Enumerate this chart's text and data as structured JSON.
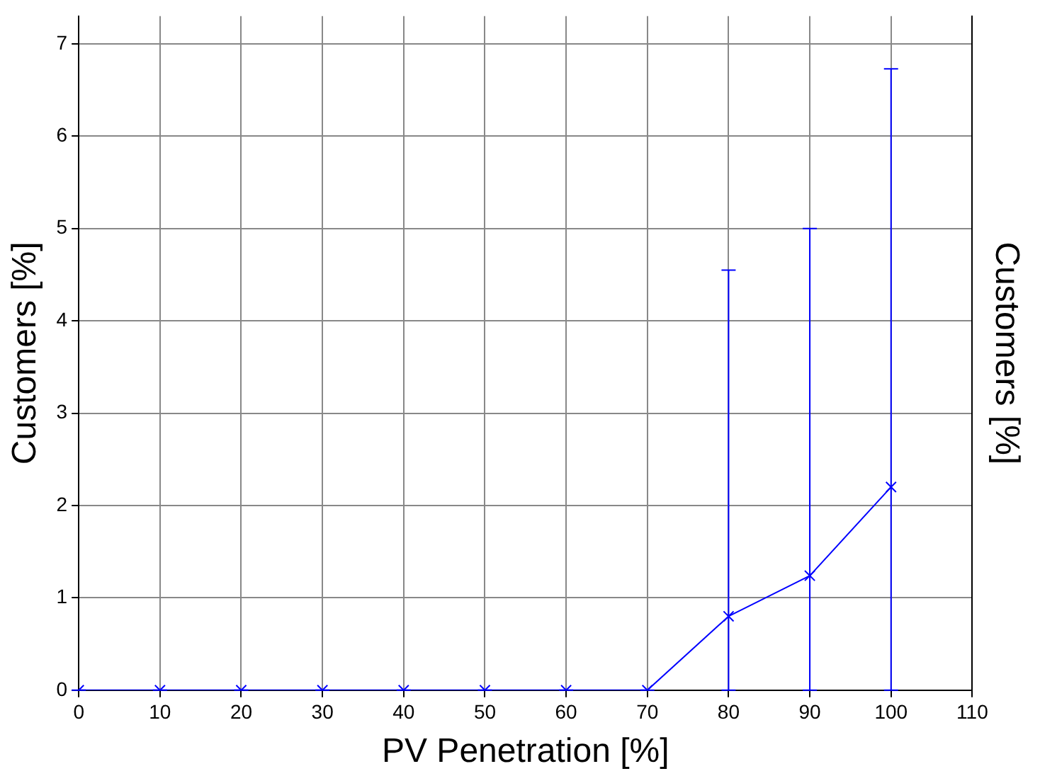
{
  "chart_data": {
    "type": "line",
    "xlabel": "PV Penetration [%]",
    "ylabel": "Customers [%]",
    "y2label": "Customers [%]",
    "x": [
      0,
      10,
      20,
      30,
      40,
      50,
      60,
      70,
      80,
      90,
      100
    ],
    "series": [
      {
        "color": "#0000ff",
        "values": [
          0,
          0,
          0,
          0,
          0,
          0,
          0,
          0,
          0.8,
          1.24,
          2.2
        ],
        "errors": [
          [
            0,
            0
          ],
          [
            0,
            0
          ],
          [
            0,
            0
          ],
          [
            0,
            0
          ],
          [
            0,
            0
          ],
          [
            0,
            0
          ],
          [
            0,
            0
          ],
          [
            0,
            0
          ],
          [
            0,
            4.55
          ],
          [
            0,
            5.0
          ],
          [
            0,
            6.73
          ]
        ]
      }
    ],
    "xlim": [
      0,
      110
    ],
    "xticks": [
      0,
      10,
      20,
      30,
      40,
      50,
      60,
      70,
      80,
      90,
      100,
      110
    ],
    "ylim": [
      0,
      7.3
    ],
    "yticks": [
      0,
      1,
      2,
      3,
      4,
      5,
      6,
      7
    ],
    "grid": true,
    "marker": "cross",
    "line_style": "solid"
  }
}
